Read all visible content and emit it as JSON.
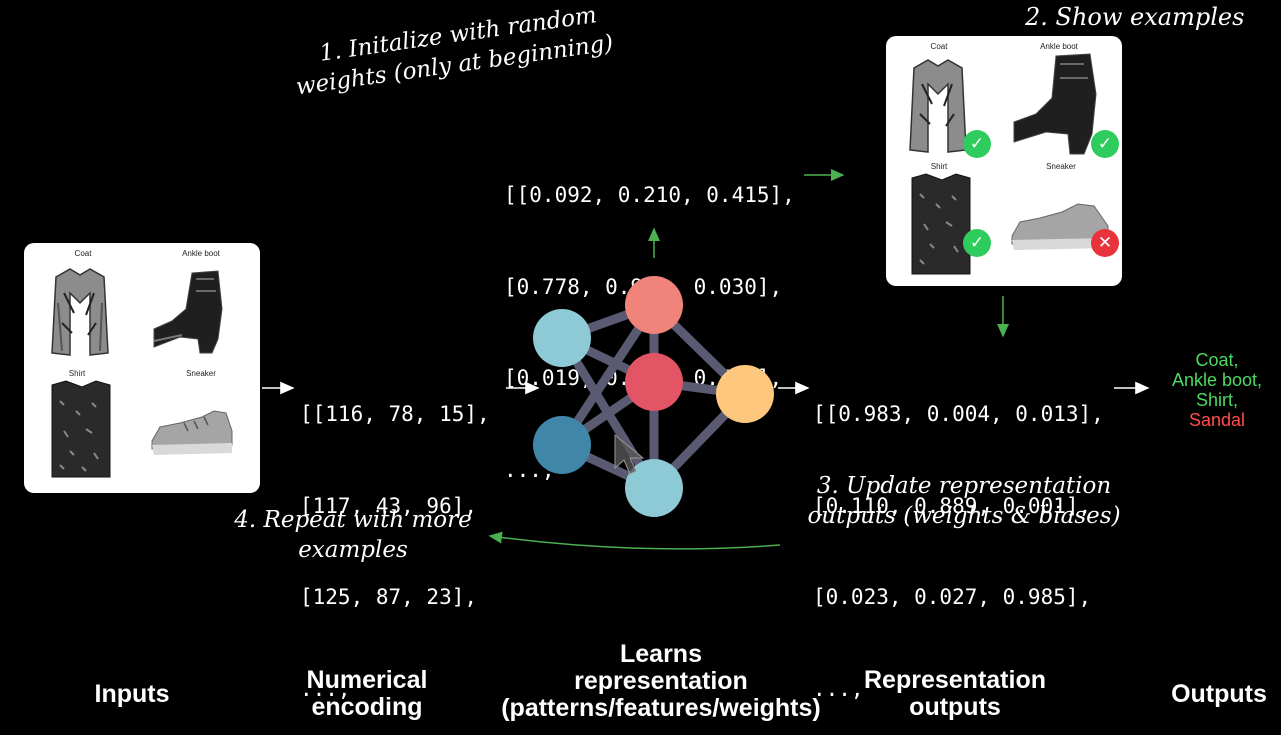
{
  "input_panel": {
    "items": [
      {
        "title": "Coat"
      },
      {
        "title": "Ankle boot"
      },
      {
        "title": "Shirt"
      },
      {
        "title": "Sneaker"
      }
    ]
  },
  "examples_panel": {
    "heading": "2. Show examples",
    "items": [
      {
        "title": "Coat",
        "status": "correct"
      },
      {
        "title": "Ankle boot",
        "status": "correct"
      },
      {
        "title": "Shirt",
        "status": "correct"
      },
      {
        "title": "Sneaker",
        "status": "incorrect"
      }
    ],
    "check_glyph": "✓",
    "cross_glyph": "✕"
  },
  "annotations": {
    "step1_line1": "1. Initalize with random",
    "step1_line2": "weights (only at beginning)",
    "step3_line1": "3. Update representation",
    "step3_line2": "outputs (weights & biases)",
    "step4_line1": "4. Repeat with more",
    "step4_line2": "examples"
  },
  "weights_matrix": [
    "[[0.092, 0.210, 0.415],",
    "[0.778, 0.929, 0.030],",
    "[0.019, 0.182, 0.555],",
    "...,"
  ],
  "input_matrix": [
    "[[116, 78, 15],",
    "[117, 43, 96],",
    "[125, 87, 23],",
    "...,"
  ],
  "output_matrix": [
    "[[0.983, 0.004, 0.013],",
    "[0.110, 0.889, 0.001],",
    "[0.023, 0.027, 0.985],",
    "...,"
  ],
  "outputs": [
    {
      "label": "Coat,",
      "color": "#4cd964"
    },
    {
      "label": "Ankle boot,",
      "color": "#4cd964"
    },
    {
      "label": "Shirt,",
      "color": "#4cd964"
    },
    {
      "label": "Sandal",
      "color": "#ff4d4d"
    }
  ],
  "column_labels": {
    "inputs": "Inputs",
    "numerical_encoding_1": "Numerical",
    "numerical_encoding_2": "encoding",
    "learns_1": "Learns",
    "learns_2": "representation",
    "learns_3": "(patterns/features/weights)",
    "repr_outputs_1": "Representation",
    "repr_outputs_2": "outputs",
    "outputs": "Outputs"
  },
  "colors": {
    "arrow_green": "#4caf50",
    "node_teal": "#8dcad6",
    "node_darkblue": "#3f86a8",
    "node_salmon": "#f0847a",
    "node_red": "#e35565",
    "node_orange": "#fdc77d",
    "edge": "#5a5a72",
    "check": "#2ecc5c",
    "cross": "#e8333c"
  }
}
